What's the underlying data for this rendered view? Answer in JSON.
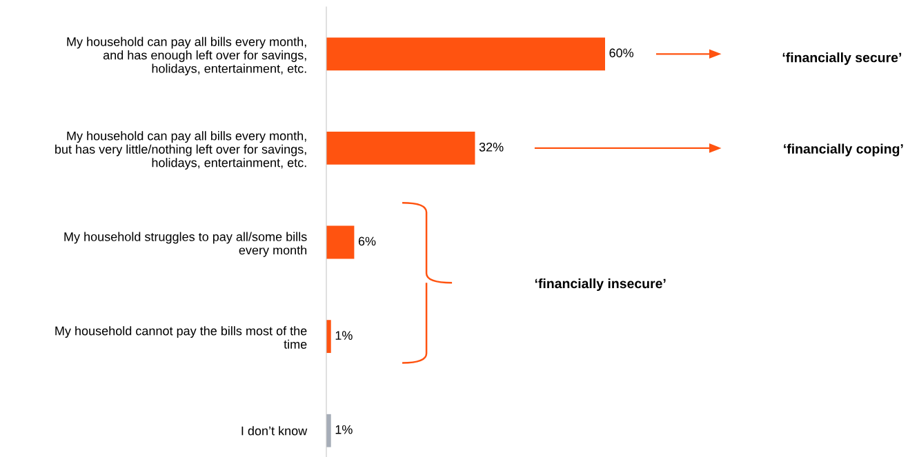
{
  "chart_data": {
    "type": "bar",
    "orientation": "horizontal",
    "categories": [
      "My household can pay all bills every month,\nand has enough left over for savings,\nholidays, entertainment, etc.",
      "My household can pay all bills every month,\nbut has very little/nothing left over for savings,\nholidays, entertainment, etc.",
      "My household struggles to pay all/some bills\nevery month",
      "My household cannot pay the bills most of the\ntime",
      "I don’t know"
    ],
    "values": [
      60,
      32,
      6,
      1,
      1
    ],
    "colors": [
      "#ff5310",
      "#ff5310",
      "#ff5310",
      "#ff5310",
      "#a6adb8"
    ],
    "value_labels": [
      "60%",
      "32%",
      "6%",
      "1%",
      "1%"
    ],
    "grid": false,
    "legend": false,
    "annotations": [
      "‘financially secure’",
      "‘financially coping’",
      "‘financially insecure’"
    ]
  }
}
